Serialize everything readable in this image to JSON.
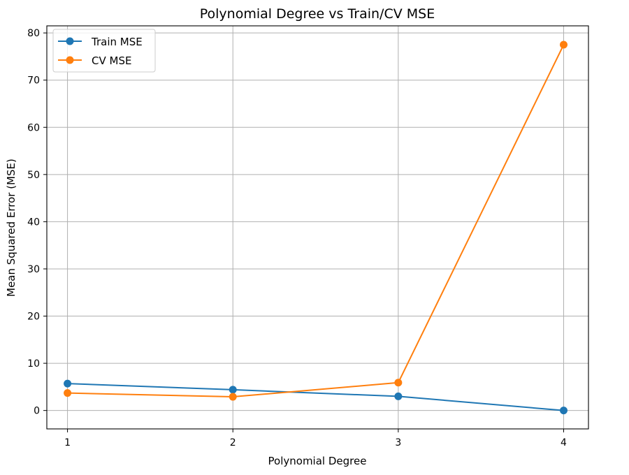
{
  "chart_data": {
    "type": "line",
    "title": "Polynomial Degree vs Train/CV MSE",
    "xlabel": "Polynomial Degree",
    "ylabel": "Mean Squared Error (MSE)",
    "x": [
      1,
      2,
      3,
      4
    ],
    "xticks": [
      "1",
      "2",
      "3",
      "4"
    ],
    "yticks": [
      "0",
      "10",
      "20",
      "30",
      "40",
      "50",
      "60",
      "70",
      "80"
    ],
    "xlim": [
      0.875,
      4.15
    ],
    "ylim": [
      -3.9,
      81.5
    ],
    "grid": true,
    "legend_position": "upper-left",
    "series": [
      {
        "name": "Train MSE",
        "color": "#1f77b4",
        "marker": "circle",
        "values": [
          5.7,
          4.4,
          3.0,
          0.0
        ]
      },
      {
        "name": "CV MSE",
        "color": "#ff7f0e",
        "marker": "circle",
        "values": [
          3.7,
          2.9,
          5.9,
          77.5
        ]
      }
    ]
  }
}
